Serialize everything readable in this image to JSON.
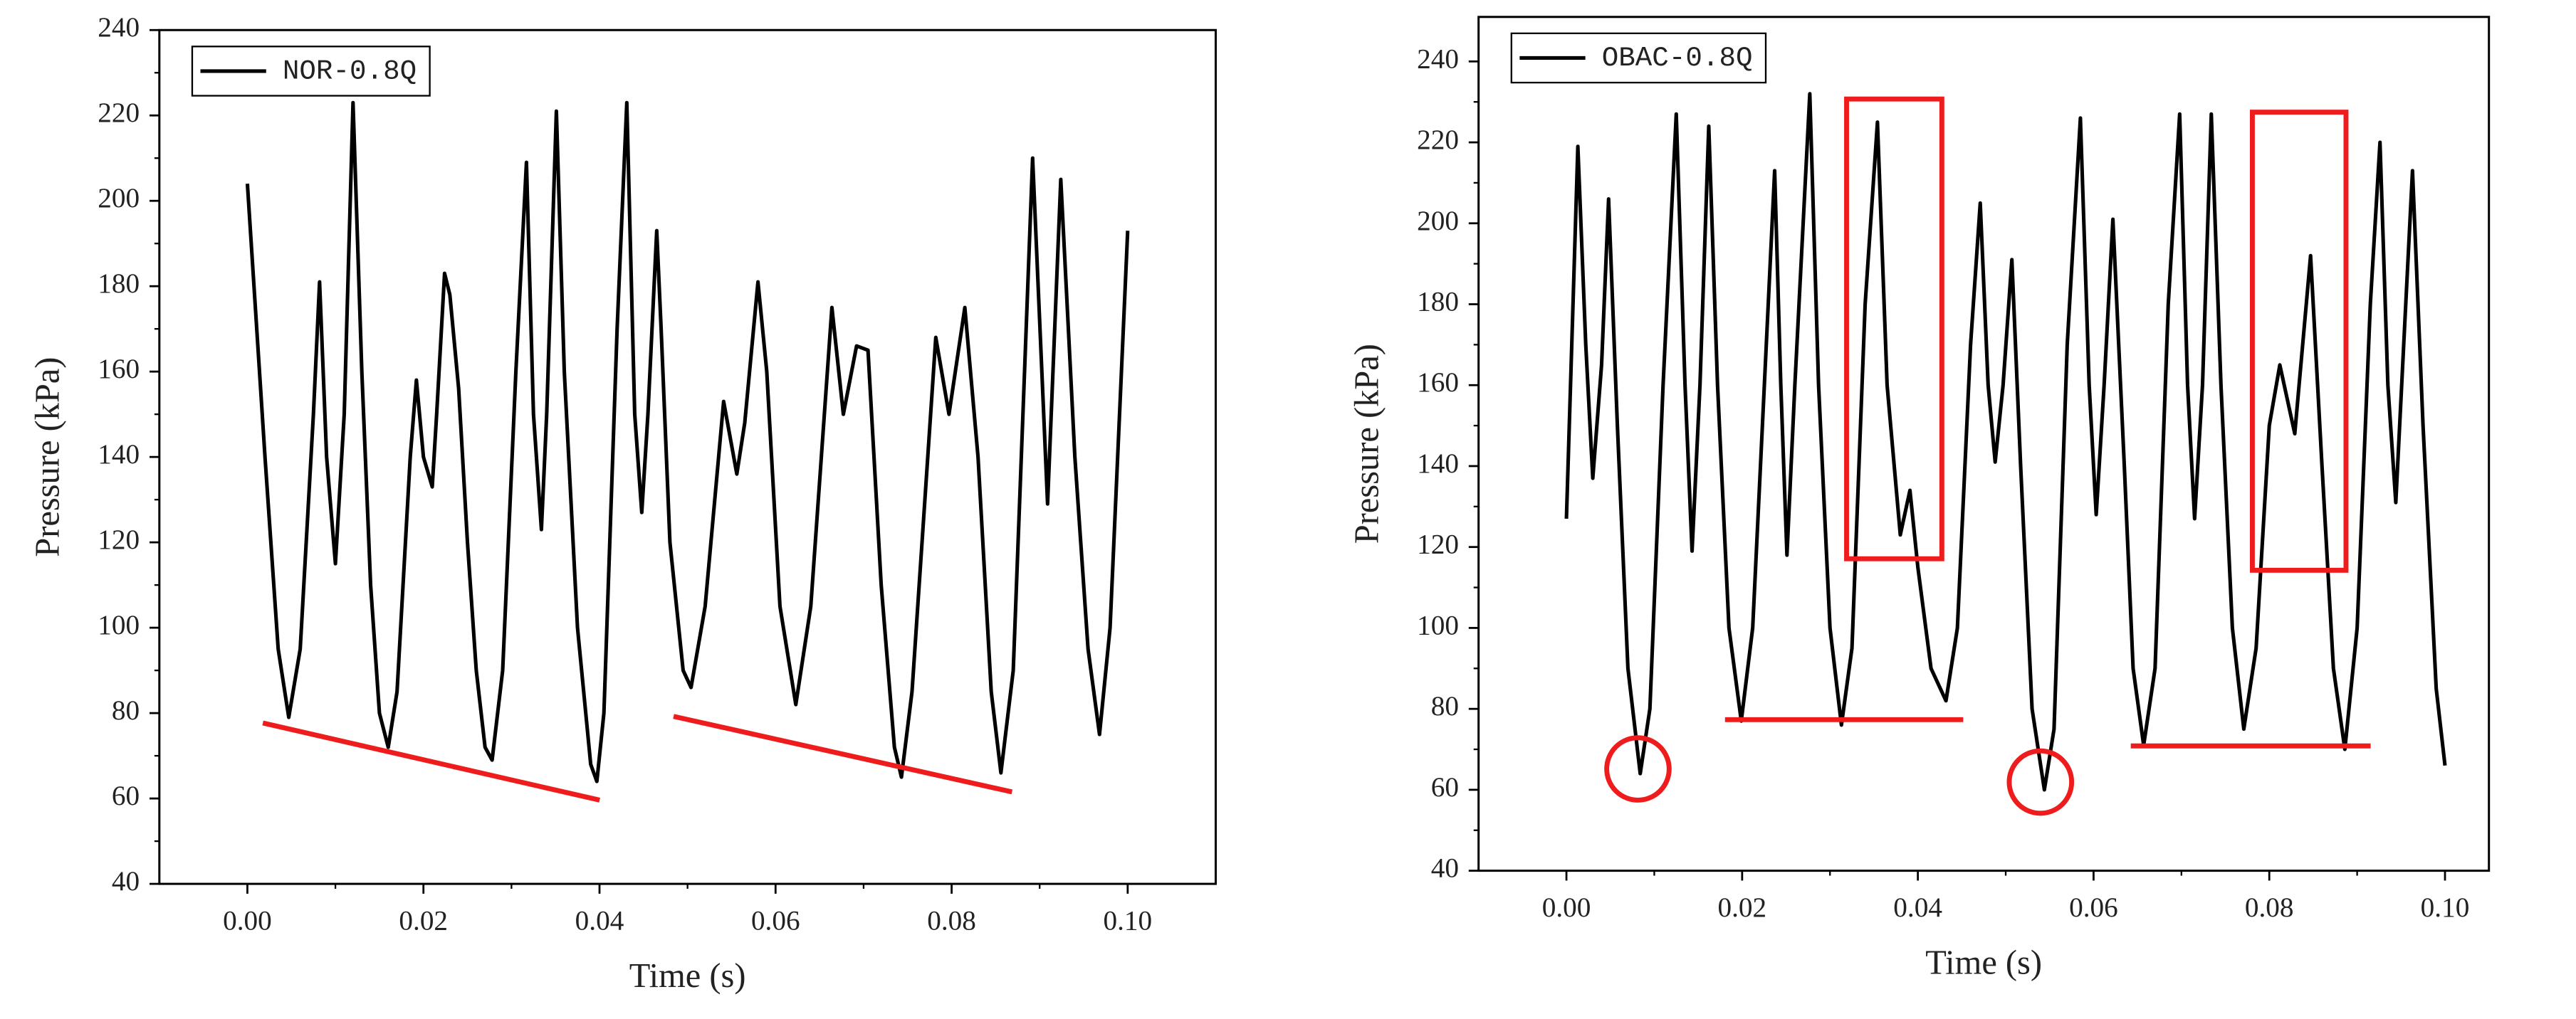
{
  "chart_data": [
    {
      "type": "line",
      "x_label": "Time (s)",
      "y_label": "Pressure (kPa)",
      "xlim": [
        -0.01,
        0.11
      ],
      "ylim": [
        40,
        240
      ],
      "xticks": [
        {
          "value": 0,
          "label": "0.00"
        },
        {
          "value": 0.02,
          "label": "0.02"
        },
        {
          "value": 0.04,
          "label": "0.04"
        },
        {
          "value": 0.06,
          "label": "0.06"
        },
        {
          "value": 0.08,
          "label": "0.08"
        },
        {
          "value": 0.1,
          "label": "0.10"
        }
      ],
      "yticks": [
        40,
        60,
        80,
        100,
        120,
        140,
        160,
        180,
        200,
        220,
        240
      ],
      "legend": "top-left",
      "x": [
        0,
        0.002,
        0.0035,
        0.0047,
        0.006,
        0.0075,
        0.0082,
        0.009,
        0.01,
        0.011,
        0.012,
        0.013,
        0.014,
        0.015,
        0.016,
        0.017,
        0.0185,
        0.0192,
        0.02,
        0.021,
        0.0215,
        0.0224,
        0.023,
        0.024,
        0.025,
        0.026,
        0.027,
        0.0278,
        0.029,
        0.0305,
        0.0317,
        0.0325,
        0.0334,
        0.034,
        0.0351,
        0.036,
        0.0375,
        0.039,
        0.0397,
        0.0405,
        0.042,
        0.0431,
        0.044,
        0.0448,
        0.0455,
        0.0465,
        0.047,
        0.048,
        0.0495,
        0.0504,
        0.052,
        0.0541,
        0.0556,
        0.0565,
        0.058,
        0.059,
        0.0605,
        0.0623,
        0.064,
        0.0664,
        0.0677,
        0.0692,
        0.0705,
        0.072,
        0.0735,
        0.0743,
        0.0755,
        0.0782,
        0.0797,
        0.0815,
        0.083,
        0.0845,
        0.0856,
        0.087,
        0.0892,
        0.0909,
        0.0924,
        0.094,
        0.0955,
        0.0968,
        0.098,
        0.1
      ],
      "series": [
        {
          "name": "NOR-0.8Q",
          "color": "#000000",
          "values": [
            204,
            140,
            95,
            79,
            95,
            150,
            181,
            140,
            115,
            150,
            223,
            160,
            110,
            80,
            72,
            85,
            140,
            158,
            140,
            133,
            150,
            183,
            178,
            156,
            120,
            90,
            72,
            69,
            90,
            160,
            209,
            150,
            123,
            150,
            221,
            160,
            100,
            68,
            64,
            80,
            170,
            223,
            150,
            127,
            150,
            193,
            170,
            120,
            90,
            86,
            105,
            153,
            136,
            148,
            181,
            160,
            105,
            82,
            105,
            175,
            150,
            166,
            165,
            110,
            72,
            65,
            85,
            168,
            150,
            175,
            140,
            85,
            66,
            90,
            210,
            129,
            205,
            140,
            95,
            75,
            100,
            193
          ]
        }
      ]
    },
    {
      "type": "line",
      "x_label": "Time (s)",
      "y_label": "Pressure (kPa)",
      "xlim": [
        -0.01,
        0.105
      ],
      "ylim": [
        40,
        251
      ],
      "xticks": [
        {
          "value": 0,
          "label": "0.00"
        },
        {
          "value": 0.02,
          "label": "0.02"
        },
        {
          "value": 0.04,
          "label": "0.04"
        },
        {
          "value": 0.06,
          "label": "0.06"
        },
        {
          "value": 0.08,
          "label": "0.08"
        },
        {
          "value": 0.1,
          "label": "0.10"
        }
      ],
      "yticks": [
        40,
        60,
        80,
        100,
        120,
        140,
        160,
        180,
        200,
        220,
        240
      ],
      "legend": "top-left",
      "x": [
        0,
        0.0013,
        0.0022,
        0.003,
        0.004,
        0.0048,
        0.0058,
        0.007,
        0.0084,
        0.0095,
        0.011,
        0.0125,
        0.0135,
        0.0143,
        0.0152,
        0.0162,
        0.0172,
        0.0185,
        0.0199,
        0.0212,
        0.0237,
        0.0244,
        0.0251,
        0.026,
        0.0277,
        0.0287,
        0.03,
        0.0313,
        0.0325,
        0.034,
        0.0354,
        0.0365,
        0.038,
        0.0391,
        0.04,
        0.0415,
        0.0432,
        0.0445,
        0.046,
        0.0471,
        0.048,
        0.0488,
        0.0497,
        0.0507,
        0.0517,
        0.053,
        0.0544,
        0.0555,
        0.057,
        0.0585,
        0.0595,
        0.0603,
        0.0612,
        0.0622,
        0.0635,
        0.0645,
        0.0657,
        0.067,
        0.0685,
        0.0698,
        0.0707,
        0.0715,
        0.0724,
        0.0734,
        0.0745,
        0.0758,
        0.0771,
        0.0785,
        0.08,
        0.0812,
        0.0829,
        0.0847,
        0.086,
        0.0873,
        0.0886,
        0.09,
        0.0915,
        0.0926,
        0.0935,
        0.0944,
        0.0953,
        0.0963,
        0.0975,
        0.099,
        0.1
      ],
      "series": [
        {
          "name": "OBAC-0.8Q",
          "color": "#000000",
          "values": [
            127,
            219,
            170,
            137,
            165,
            206,
            150,
            90,
            64,
            80,
            160,
            227,
            160,
            119,
            160,
            224,
            160,
            100,
            77,
            100,
            213,
            160,
            118,
            160,
            232,
            160,
            100,
            76,
            95,
            180,
            225,
            160,
            123,
            134,
            115,
            90,
            82,
            100,
            170,
            205,
            160,
            141,
            160,
            191,
            140,
            80,
            60,
            75,
            170,
            226,
            160,
            128,
            160,
            201,
            140,
            90,
            71,
            90,
            180,
            227,
            160,
            127,
            160,
            227,
            160,
            100,
            75,
            95,
            150,
            165,
            148,
            192,
            140,
            90,
            70,
            100,
            180,
            220,
            160,
            131,
            170,
            213,
            150,
            85,
            66
          ]
        }
      ]
    }
  ]
}
